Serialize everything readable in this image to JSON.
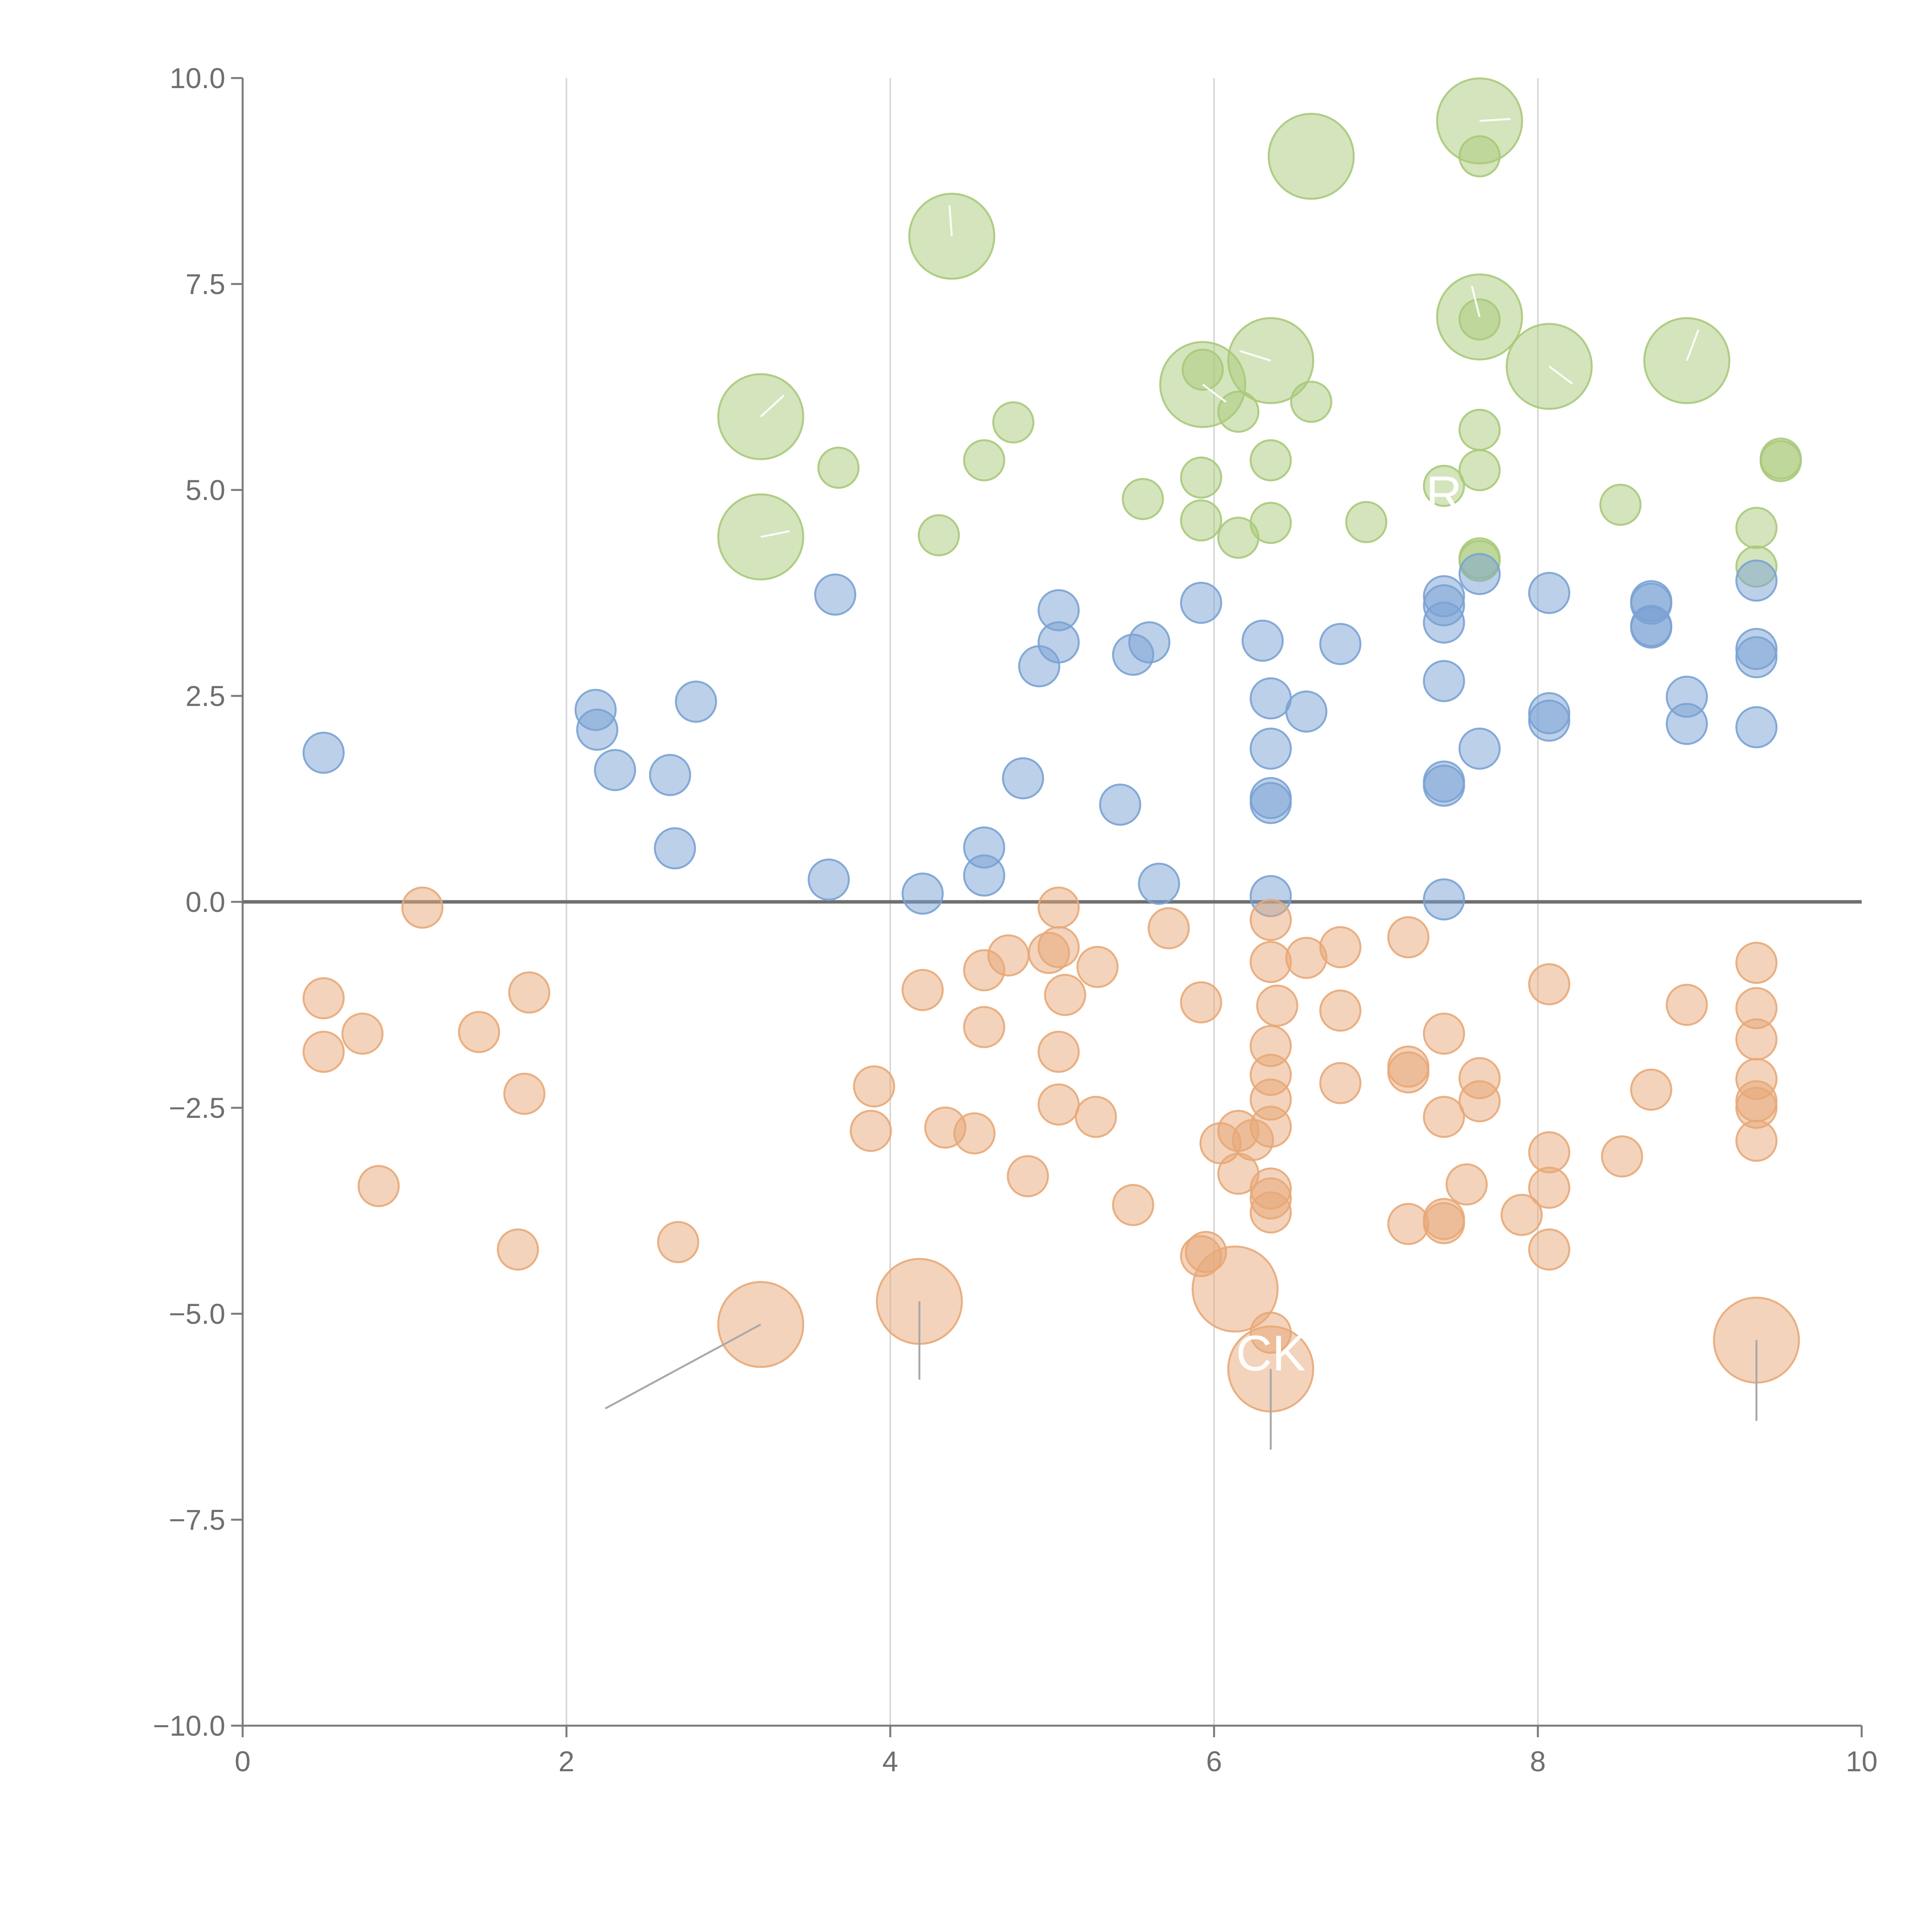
{
  "chart_data": {
    "type": "scatter",
    "title": "",
    "xlabel": "",
    "ylabel": "",
    "xlim": [
      0,
      10
    ],
    "ylim": [
      -10,
      10
    ],
    "x_ticks": [
      0,
      2,
      4,
      6,
      8,
      10
    ],
    "y_ticks": [
      10,
      7.5,
      5,
      2.5,
      0,
      -2.5,
      -5,
      -7.5,
      -10
    ],
    "x_tick_labels": [
      "0",
      "2",
      "4",
      "6",
      "8",
      "10"
    ],
    "y_tick_labels": [
      "10.0",
      "7.5",
      "5.0",
      "2.5",
      "0.0",
      "−2.5",
      "−5.0",
      "−7.5",
      "−10.0"
    ],
    "grid": "vertical",
    "zero_line": 0,
    "series": [
      {
        "name": "green",
        "color": "#a9c97a",
        "points": [
          [
            7.64,
            9.48,
            "L"
          ],
          [
            6.6,
            9.05,
            "L"
          ],
          [
            7.64,
            9.05,
            "S"
          ],
          [
            4.38,
            8.08,
            "L"
          ],
          [
            7.64,
            7.1,
            "L"
          ],
          [
            7.64,
            7.07,
            "S"
          ],
          [
            6.35,
            6.57,
            "L"
          ],
          [
            8.92,
            6.57,
            "L"
          ],
          [
            8.07,
            6.5,
            "L"
          ],
          [
            5.93,
            6.46,
            "S"
          ],
          [
            5.93,
            6.28,
            "L"
          ],
          [
            3.2,
            5.89,
            "L"
          ],
          [
            6.6,
            6.07,
            "S"
          ],
          [
            6.15,
            5.95,
            "S"
          ],
          [
            4.76,
            5.82,
            "S"
          ],
          [
            7.64,
            5.73,
            "S"
          ],
          [
            4.58,
            5.36,
            "S"
          ],
          [
            6.35,
            5.36,
            "S"
          ],
          [
            3.68,
            5.27,
            "S"
          ],
          [
            7.64,
            5.24,
            "S"
          ],
          [
            9.5,
            5.38,
            "S"
          ],
          [
            9.5,
            5.35,
            "S"
          ],
          [
            5.92,
            5.15,
            "S"
          ],
          [
            7.42,
            5.05,
            "S"
          ],
          [
            5.56,
            4.89,
            "S"
          ],
          [
            8.51,
            4.82,
            "S"
          ],
          [
            5.92,
            4.63,
            "S"
          ],
          [
            6.35,
            4.6,
            "S"
          ],
          [
            6.94,
            4.61,
            "S"
          ],
          [
            9.35,
            4.54,
            "S"
          ],
          [
            3.2,
            4.43,
            "L"
          ],
          [
            4.3,
            4.45,
            "S"
          ],
          [
            6.15,
            4.42,
            "S"
          ],
          [
            7.64,
            4.17,
            "S"
          ],
          [
            7.64,
            4.14,
            "S"
          ],
          [
            9.35,
            4.07,
            "S"
          ]
        ]
      },
      {
        "name": "blue",
        "color": "#7aa2d4",
        "points": [
          [
            7.64,
            3.98
          ],
          [
            9.35,
            3.9
          ],
          [
            3.66,
            3.73
          ],
          [
            8.07,
            3.75
          ],
          [
            7.42,
            3.71
          ],
          [
            8.7,
            3.65
          ],
          [
            7.42,
            3.6
          ],
          [
            8.7,
            3.62
          ],
          [
            5.92,
            3.63
          ],
          [
            5.04,
            3.54
          ],
          [
            7.42,
            3.39
          ],
          [
            8.7,
            3.35
          ],
          [
            8.7,
            3.33
          ],
          [
            5.6,
            3.15
          ],
          [
            5.04,
            3.15
          ],
          [
            6.3,
            3.17
          ],
          [
            6.78,
            3.13
          ],
          [
            9.35,
            3.07
          ],
          [
            5.5,
            3.0
          ],
          [
            9.35,
            2.97
          ],
          [
            4.92,
            2.86
          ],
          [
            7.42,
            2.68
          ],
          [
            8.92,
            2.49
          ],
          [
            6.35,
            2.47
          ],
          [
            2.8,
            2.43
          ],
          [
            2.18,
            2.33
          ],
          [
            6.57,
            2.31
          ],
          [
            8.07,
            2.29
          ],
          [
            8.07,
            2.2
          ],
          [
            8.92,
            2.16
          ],
          [
            9.35,
            2.12
          ],
          [
            2.19,
            2.09
          ],
          [
            0.5,
            1.81
          ],
          [
            6.35,
            1.86
          ],
          [
            7.64,
            1.86
          ],
          [
            2.3,
            1.6
          ],
          [
            2.64,
            1.54
          ],
          [
            4.82,
            1.5
          ],
          [
            7.42,
            1.46
          ],
          [
            7.42,
            1.41
          ],
          [
            6.35,
            1.26
          ],
          [
            6.35,
            1.2
          ],
          [
            5.42,
            1.18
          ],
          [
            2.67,
            0.65
          ],
          [
            4.58,
            0.66
          ],
          [
            4.58,
            0.32
          ],
          [
            3.62,
            0.27
          ],
          [
            5.66,
            0.22
          ],
          [
            4.2,
            0.1
          ],
          [
            6.35,
            0.07
          ],
          [
            7.42,
            0.03
          ]
        ]
      },
      {
        "name": "orange",
        "color": "#e8a878",
        "points": [
          [
            1.11,
            -0.07,
            "S"
          ],
          [
            5.04,
            -0.07,
            "S"
          ],
          [
            6.35,
            -0.22,
            "S"
          ],
          [
            5.72,
            -0.32,
            "S"
          ],
          [
            7.2,
            -0.43,
            "S"
          ],
          [
            6.78,
            -0.55,
            "S"
          ],
          [
            5.04,
            -0.55,
            "S"
          ],
          [
            4.73,
            -0.65,
            "S"
          ],
          [
            4.98,
            -0.62,
            "S"
          ],
          [
            6.57,
            -0.68,
            "S"
          ],
          [
            6.35,
            -0.73,
            "S"
          ],
          [
            9.35,
            -0.74,
            "S"
          ],
          [
            5.28,
            -0.79,
            "S"
          ],
          [
            4.58,
            -0.83,
            "S"
          ],
          [
            8.07,
            -1.0,
            "S"
          ],
          [
            1.77,
            -1.1,
            "S"
          ],
          [
            4.2,
            -1.07,
            "S"
          ],
          [
            5.08,
            -1.13,
            "S"
          ],
          [
            0.5,
            -1.17,
            "S"
          ],
          [
            5.92,
            -1.22,
            "S"
          ],
          [
            6.39,
            -1.26,
            "S"
          ],
          [
            8.92,
            -1.25,
            "S"
          ],
          [
            9.35,
            -1.29,
            "S"
          ],
          [
            6.78,
            -1.32,
            "S"
          ],
          [
            4.58,
            -1.52,
            "S"
          ],
          [
            1.46,
            -1.58,
            "S"
          ],
          [
            0.74,
            -1.6,
            "S"
          ],
          [
            7.42,
            -1.6,
            "S"
          ],
          [
            9.35,
            -1.67,
            "S"
          ],
          [
            6.35,
            -1.75,
            "S"
          ],
          [
            5.04,
            -1.82,
            "S"
          ],
          [
            0.5,
            -1.82,
            "S"
          ],
          [
            7.2,
            -2.0,
            "S"
          ],
          [
            7.2,
            -2.07,
            "S"
          ],
          [
            6.35,
            -2.1,
            "S"
          ],
          [
            7.64,
            -2.14,
            "S"
          ],
          [
            9.35,
            -2.15,
            "S"
          ],
          [
            3.9,
            -2.24,
            "S"
          ],
          [
            6.78,
            -2.2,
            "S"
          ],
          [
            8.7,
            -2.28,
            "S"
          ],
          [
            1.74,
            -2.33,
            "S"
          ],
          [
            6.35,
            -2.4,
            "S"
          ],
          [
            7.64,
            -2.42,
            "S"
          ],
          [
            9.35,
            -2.42,
            "S"
          ],
          [
            9.35,
            -2.5,
            "S"
          ],
          [
            5.04,
            -2.46,
            "S"
          ],
          [
            7.42,
            -2.61,
            "S"
          ],
          [
            5.27,
            -2.61,
            "S"
          ],
          [
            6.35,
            -2.73,
            "S"
          ],
          [
            6.15,
            -2.78,
            "S"
          ],
          [
            4.34,
            -2.74,
            "S"
          ],
          [
            3.88,
            -2.78,
            "S"
          ],
          [
            4.52,
            -2.81,
            "S"
          ],
          [
            6.24,
            -2.89,
            "S"
          ],
          [
            6.04,
            -2.93,
            "S"
          ],
          [
            9.35,
            -2.9,
            "S"
          ],
          [
            8.07,
            -3.04,
            "S"
          ],
          [
            8.52,
            -3.09,
            "S"
          ],
          [
            6.15,
            -3.3,
            "S"
          ],
          [
            4.85,
            -3.33,
            "S"
          ],
          [
            0.84,
            -3.45,
            "S"
          ],
          [
            7.56,
            -3.43,
            "S"
          ],
          [
            8.07,
            -3.47,
            "S"
          ],
          [
            6.35,
            -3.48,
            "S"
          ],
          [
            6.35,
            -3.6,
            "S"
          ],
          [
            5.5,
            -3.68,
            "S"
          ],
          [
            6.35,
            -3.77,
            "S"
          ],
          [
            7.9,
            -3.8,
            "S"
          ],
          [
            7.42,
            -3.85,
            "S"
          ],
          [
            7.42,
            -3.9,
            "S"
          ],
          [
            7.2,
            -3.91,
            "S"
          ],
          [
            2.69,
            -4.13,
            "S"
          ],
          [
            1.7,
            -4.22,
            "S"
          ],
          [
            8.07,
            -4.22,
            "S"
          ],
          [
            5.95,
            -4.25,
            "S"
          ],
          [
            5.92,
            -4.3,
            "S"
          ],
          [
            6.35,
            -5.23,
            "S"
          ],
          [
            6.13,
            -4.7,
            "L"
          ],
          [
            4.18,
            -4.85,
            "L"
          ],
          [
            3.2,
            -5.13,
            "L"
          ],
          [
            9.35,
            -5.32,
            "L"
          ],
          [
            6.35,
            -5.67,
            "L"
          ]
        ]
      }
    ],
    "annotations": [
      {
        "text": "CK",
        "color": "#ffffff",
        "x": 6.35,
        "y": -5.5
      },
      {
        "text": "R",
        "color": "#ffffff",
        "x": 7.42,
        "y": 4.93
      }
    ]
  }
}
